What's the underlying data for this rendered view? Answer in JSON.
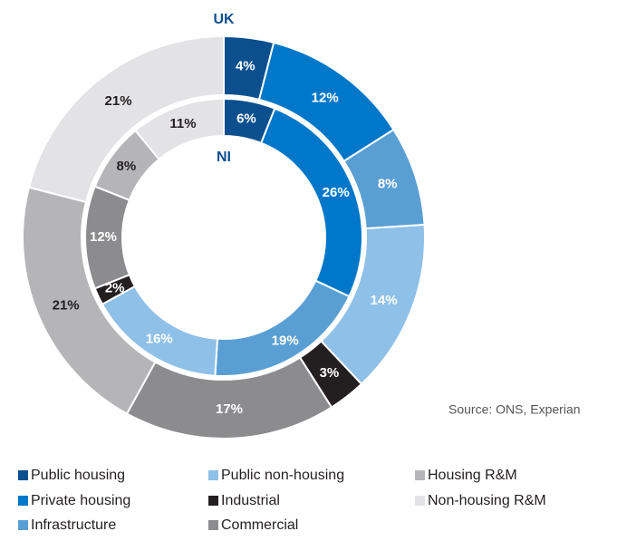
{
  "chart_data": {
    "type": "donut",
    "categories": [
      "Public housing",
      "Private housing",
      "Infrastructure",
      "Public non-housing",
      "Industrial",
      "Commercial",
      "Housing R&M",
      "Non-housing R&M"
    ],
    "colors": [
      "#0b4f8f",
      "#0077c8",
      "#5a9fd4",
      "#8fc0e8",
      "#231f20",
      "#8c8c8e",
      "#b5b5b7",
      "#e3e3e5"
    ],
    "series": [
      {
        "name": "UK",
        "values": [
          4,
          12,
          8,
          14,
          3,
          17,
          21,
          21
        ],
        "value_labels": [
          "4%",
          "12%",
          "8%",
          "14%",
          "3%",
          "17%",
          "21%",
          "21%"
        ]
      },
      {
        "name": "NI",
        "values": [
          6,
          26,
          19,
          16,
          2,
          12,
          8,
          11
        ],
        "value_labels": [
          "6%",
          "26%",
          "19%",
          "16%",
          "2%",
          "12%",
          "8%",
          "11%"
        ]
      }
    ],
    "source": "Source: ONS, Experian"
  }
}
